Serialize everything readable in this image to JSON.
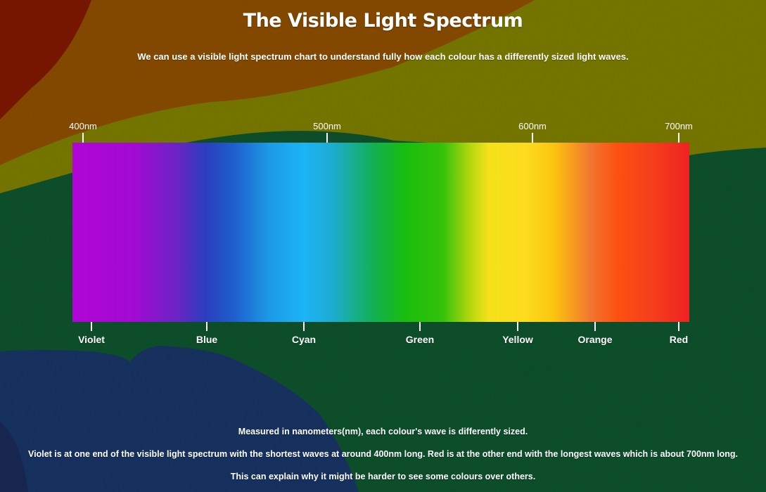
{
  "header": {
    "title": "The Visible Light Spectrum",
    "intro": "We can use a visible light spectrum chart to understand fully how each colour has a differently sized light waves."
  },
  "scale": {
    "markers": [
      {
        "label": "400nm",
        "value": 400
      },
      {
        "label": "500nm",
        "value": 500
      },
      {
        "label": "600nm",
        "value": 600
      },
      {
        "label": "700nm",
        "value": 700
      }
    ]
  },
  "colors": [
    {
      "name": "Violet",
      "hex": "#b005d6"
    },
    {
      "name": "Blue",
      "hex": "#2a3fbd"
    },
    {
      "name": "Cyan",
      "hex": "#1bb4f5"
    },
    {
      "name": "Green",
      "hex": "#19bd0d"
    },
    {
      "name": "Yellow",
      "hex": "#fddb1d"
    },
    {
      "name": "Orange",
      "hex": "#f2752f"
    },
    {
      "name": "Red",
      "hex": "#ee2222"
    }
  ],
  "notes": [
    "Measured in nanometers(nm), each colour's wave is differently sized.",
    "Violet is at one end of the visible light spectrum with the shortest waves at around 400nm long. Red is at the other end with the longest waves which is about 700nm long.",
    "This can explain why it might be harder to see some colours over others."
  ]
}
